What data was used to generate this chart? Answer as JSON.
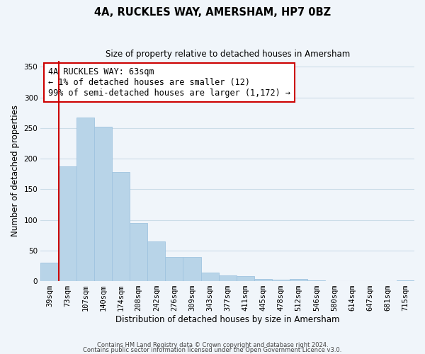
{
  "title": "4A, RUCKLES WAY, AMERSHAM, HP7 0BZ",
  "subtitle": "Size of property relative to detached houses in Amersham",
  "xlabel": "Distribution of detached houses by size in Amersham",
  "ylabel": "Number of detached properties",
  "bar_color": "#b8d4e8",
  "bar_edge_color": "#a0c4e0",
  "marker_color": "#cc0000",
  "bin_labels": [
    "39sqm",
    "73sqm",
    "107sqm",
    "140sqm",
    "174sqm",
    "208sqm",
    "242sqm",
    "276sqm",
    "309sqm",
    "343sqm",
    "377sqm",
    "411sqm",
    "445sqm",
    "478sqm",
    "512sqm",
    "546sqm",
    "580sqm",
    "614sqm",
    "647sqm",
    "681sqm",
    "715sqm"
  ],
  "bar_heights": [
    30,
    187,
    267,
    252,
    178,
    95,
    65,
    40,
    40,
    14,
    10,
    8,
    4,
    3,
    4,
    2,
    0,
    0,
    0,
    0,
    2
  ],
  "marker_bin_index": 1,
  "annotation_lines": [
    "4A RUCKLES WAY: 63sqm",
    "← 1% of detached houses are smaller (12)",
    "99% of semi-detached houses are larger (1,172) →"
  ],
  "ylim": [
    0,
    360
  ],
  "yticks": [
    0,
    50,
    100,
    150,
    200,
    250,
    300,
    350
  ],
  "footer_line1": "Contains HM Land Registry data © Crown copyright and database right 2024.",
  "footer_line2": "Contains public sector information licensed under the Open Government Licence v3.0.",
  "background_color": "#f0f5fa",
  "grid_color": "#ccdde8",
  "ann_fontsize": 8.5,
  "title_fontsize": 10.5,
  "subtitle_fontsize": 8.5,
  "axis_label_fontsize": 8.5,
  "tick_fontsize": 7.5
}
